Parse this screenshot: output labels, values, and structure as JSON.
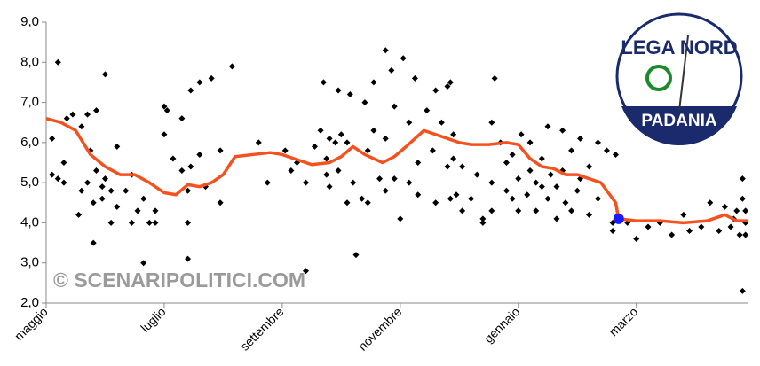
{
  "chart_data": {
    "type": "scatter",
    "watermark": "© SCENARIPOLITICI.COM",
    "logo": {
      "top": "LEGA NORD",
      "bottom": "PADANIA"
    },
    "xlim": [
      0,
      11.9
    ],
    "xticks": [
      {
        "value": 0,
        "label": "maggio"
      },
      {
        "value": 2,
        "label": "luglio"
      },
      {
        "value": 4,
        "label": "settembre"
      },
      {
        "value": 6,
        "label": "novembre"
      },
      {
        "value": 8,
        "label": "gennaio"
      },
      {
        "value": 10,
        "label": "marzo"
      }
    ],
    "ylim": [
      2,
      9
    ],
    "yticks": [
      {
        "value": 2,
        "label": "2,0"
      },
      {
        "value": 3,
        "label": "3,0"
      },
      {
        "value": 4,
        "label": "4,0"
      },
      {
        "value": 5,
        "label": "5,0"
      },
      {
        "value": 6,
        "label": "6,0"
      },
      {
        "value": 7,
        "label": "7,0"
      },
      {
        "value": 8,
        "label": "8,0"
      },
      {
        "value": 9,
        "label": "9,0"
      }
    ],
    "grid": false,
    "series": [
      {
        "type": "scatter",
        "color": "#000000",
        "x": [
          0.1,
          0.1,
          0.2,
          0.2,
          0.3,
          0.3,
          0.35,
          0.45,
          0.55,
          0.6,
          0.6,
          0.7,
          0.7,
          0.75,
          0.8,
          0.8,
          0.85,
          0.85,
          0.95,
          0.95,
          1.0,
          1.0,
          1.1,
          1.1,
          1.2,
          1.2,
          1.35,
          1.45,
          1.45,
          1.55,
          1.65,
          1.65,
          1.75,
          1.85,
          1.85,
          2.0,
          2.0,
          2.05,
          2.15,
          2.3,
          2.3,
          2.4,
          2.4,
          2.4,
          2.45,
          2.45,
          2.6,
          2.6,
          2.7,
          2.8,
          2.95,
          2.95,
          3.15,
          3.6,
          3.75,
          4.05,
          4.15,
          4.25,
          4.4,
          4.4,
          4.55,
          4.65,
          4.7,
          4.75,
          4.75,
          4.8,
          4.8,
          4.9,
          4.95,
          4.95,
          5.0,
          5.1,
          5.1,
          5.15,
          5.2,
          5.25,
          5.35,
          5.4,
          5.45,
          5.45,
          5.55,
          5.55,
          5.65,
          5.75,
          5.75,
          5.75,
          5.85,
          5.9,
          5.9,
          6.0,
          6.05,
          6.15,
          6.15,
          6.25,
          6.3,
          6.3,
          6.45,
          6.55,
          6.6,
          6.6,
          6.7,
          6.8,
          6.8,
          6.85,
          6.85,
          6.9,
          6.9,
          6.95,
          7.05,
          7.05,
          7.2,
          7.3,
          7.4,
          7.4,
          7.55,
          7.55,
          7.55,
          7.6,
          7.7,
          7.8,
          7.8,
          7.9,
          7.9,
          8.0,
          8.0,
          8.05,
          8.15,
          8.2,
          8.2,
          8.3,
          8.3,
          8.4,
          8.4,
          8.5,
          8.5,
          8.55,
          8.65,
          8.65,
          8.75,
          8.75,
          8.8,
          8.9,
          8.9,
          9.0,
          9.05,
          9.05,
          9.2,
          9.2,
          9.35,
          9.35,
          9.5,
          9.6,
          9.6,
          9.65,
          9.85,
          10.0,
          10.2,
          10.4,
          10.6,
          10.8,
          10.9,
          11.1,
          11.25,
          11.4,
          11.5,
          11.6,
          11.65,
          11.7,
          11.75,
          11.8,
          11.8,
          11.8,
          11.85,
          11.85,
          11.85
        ],
        "values": [
          6.1,
          5.2,
          8.0,
          5.1,
          5.5,
          5.0,
          6.6,
          6.7,
          4.2,
          4.8,
          6.4,
          6.7,
          5.0,
          5.8,
          4.5,
          3.5,
          6.8,
          5.3,
          4.9,
          4.6,
          5.1,
          7.7,
          4.0,
          4.8,
          5.9,
          4.4,
          4.8,
          5.2,
          4.0,
          4.3,
          3.0,
          4.6,
          4.0,
          4.3,
          4.0,
          6.2,
          6.9,
          6.8,
          5.6,
          5.3,
          6.6,
          4.8,
          3.1,
          4.0,
          7.3,
          5.4,
          5.7,
          7.5,
          4.9,
          7.6,
          4.5,
          5.8,
          7.9,
          6.0,
          5.0,
          5.8,
          5.3,
          5.5,
          2.8,
          5.0,
          5.9,
          6.3,
          7.5,
          5.2,
          5.6,
          6.1,
          4.9,
          6.0,
          7.3,
          5.3,
          6.2,
          6.0,
          4.5,
          7.2,
          5.0,
          3.2,
          4.6,
          7.0,
          4.5,
          5.8,
          7.5,
          6.3,
          5.1,
          8.3,
          6.1,
          4.8,
          7.8,
          6.9,
          5.1,
          4.1,
          8.1,
          5.0,
          6.5,
          7.6,
          4.7,
          5.5,
          6.8,
          5.8,
          4.5,
          7.3,
          6.5,
          5.4,
          7.4,
          4.6,
          7.5,
          5.6,
          6.2,
          4.7,
          4.3,
          5.4,
          4.6,
          5.2,
          4.1,
          4.0,
          6.5,
          5.0,
          4.3,
          7.6,
          6.0,
          5.5,
          4.8,
          5.7,
          4.6,
          5.1,
          4.3,
          6.2,
          4.7,
          6.0,
          5.3,
          5.0,
          4.3,
          5.6,
          4.9,
          6.4,
          4.6,
          5.2,
          4.9,
          4.1,
          5.3,
          6.3,
          4.5,
          5.8,
          4.3,
          4.8,
          6.1,
          5.1,
          5.4,
          4.2,
          6.0,
          4.6,
          5.8,
          4.0,
          3.8,
          5.7,
          4.0,
          3.6,
          3.9,
          4.0,
          3.7,
          4.2,
          3.8,
          3.9,
          4.5,
          3.8,
          4.4,
          3.9,
          4.1,
          4.3,
          3.7,
          5.1,
          4.6,
          2.3,
          4.3,
          4.0,
          3.7
        ]
      },
      {
        "type": "line",
        "color": "#f4511e",
        "x": [
          0,
          0.25,
          0.5,
          0.75,
          1.0,
          1.25,
          1.5,
          1.75,
          2.0,
          2.2,
          2.4,
          2.6,
          2.8,
          3.0,
          3.2,
          3.5,
          3.8,
          4.0,
          4.2,
          4.5,
          4.8,
          5.0,
          5.2,
          5.4,
          5.7,
          5.9,
          6.1,
          6.4,
          6.7,
          7.0,
          7.2,
          7.5,
          7.8,
          8.0,
          8.2,
          8.4,
          8.6,
          8.8,
          9.0,
          9.2,
          9.4,
          9.6,
          9.65,
          9.7,
          10.0,
          10.4,
          10.8,
          11.2,
          11.5,
          11.7,
          11.9
        ],
        "values": [
          6.6,
          6.5,
          6.3,
          5.7,
          5.4,
          5.2,
          5.2,
          5.0,
          4.75,
          4.7,
          4.95,
          4.9,
          5.0,
          5.2,
          5.65,
          5.7,
          5.75,
          5.7,
          5.6,
          5.45,
          5.5,
          5.65,
          5.9,
          5.7,
          5.5,
          5.65,
          5.9,
          6.3,
          6.15,
          6.0,
          5.95,
          5.95,
          6.0,
          5.95,
          5.6,
          5.4,
          5.35,
          5.2,
          5.2,
          5.1,
          5.0,
          4.6,
          4.5,
          4.1,
          4.05,
          4.05,
          4.0,
          4.05,
          4.2,
          4.05,
          4.05
        ]
      },
      {
        "type": "point",
        "color": "#1a1aff",
        "x": [
          9.7
        ],
        "values": [
          4.1
        ]
      }
    ]
  }
}
